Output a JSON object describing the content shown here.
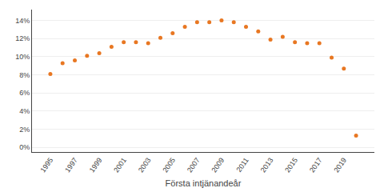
{
  "chart_data": {
    "type": "scatter",
    "x_label": "Första intjänandeår",
    "x": [
      1995,
      1996,
      1997,
      1998,
      1999,
      2000,
      2001,
      2002,
      2003,
      2004,
      2005,
      2006,
      2007,
      2008,
      2009,
      2010,
      2011,
      2012,
      2013,
      2014,
      2015,
      2016,
      2017,
      2018,
      2019,
      2020
    ],
    "values": [
      0.081,
      0.093,
      0.096,
      0.101,
      0.104,
      0.111,
      0.116,
      0.116,
      0.115,
      0.121,
      0.126,
      0.133,
      0.138,
      0.138,
      0.14,
      0.138,
      0.133,
      0.128,
      0.119,
      0.122,
      0.116,
      0.115,
      0.115,
      0.099,
      0.087,
      0.013
    ],
    "color": "#E87722",
    "xlim": [
      1993.5,
      2021.5
    ],
    "xticks": [
      1995,
      1997,
      1999,
      2001,
      2003,
      2005,
      2007,
      2009,
      2011,
      2013,
      2015,
      2017,
      2019
    ],
    "ylim": [
      -0.005,
      0.152
    ],
    "yticks": [
      {
        "value": 0.0,
        "label": "0%"
      },
      {
        "value": 0.02,
        "label": "2%"
      },
      {
        "value": 0.04,
        "label": "4%"
      },
      {
        "value": 0.06,
        "label": "6%"
      },
      {
        "value": 0.08,
        "label": "8%"
      },
      {
        "value": 0.1,
        "label": "10%"
      },
      {
        "value": 0.12,
        "label": "12%"
      },
      {
        "value": 0.14,
        "label": "14%"
      }
    ],
    "grid": "y"
  }
}
